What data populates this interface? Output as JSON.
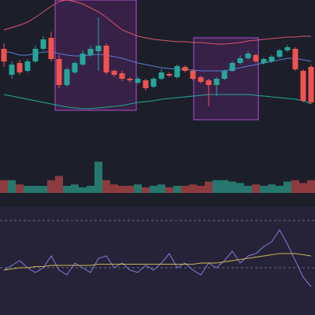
{
  "chart_data": [
    {
      "type": "candlestick",
      "ylim": [
        0,
        150
      ],
      "up_color": "#26a69a",
      "down_color": "#ef5350",
      "open": [
        88,
        55,
        70,
        60,
        72,
        88,
        102,
        75,
        42,
        58,
        68,
        80,
        85,
        92,
        60,
        57,
        50,
        45,
        48,
        40,
        50,
        56,
        52,
        65,
        60,
        52,
        48,
        42,
        50,
        60,
        70,
        76,
        80,
        70,
        72,
        78,
        86,
        88,
        60,
        65
      ],
      "close": [
        72,
        68,
        58,
        72,
        88,
        100,
        75,
        42,
        62,
        70,
        82,
        88,
        92,
        58,
        55,
        50,
        48,
        50,
        38,
        50,
        58,
        54,
        66,
        60,
        50,
        46,
        42,
        50,
        60,
        70,
        76,
        82,
        72,
        75,
        78,
        86,
        90,
        62,
        22,
        20
      ],
      "high": [
        95,
        72,
        74,
        75,
        92,
        104,
        110,
        80,
        64,
        72,
        86,
        92,
        128,
        95,
        62,
        60,
        52,
        52,
        50,
        52,
        62,
        58,
        68,
        67,
        62,
        54,
        50,
        52,
        62,
        72,
        80,
        85,
        82,
        77,
        80,
        88,
        93,
        90,
        62,
        68
      ],
      "low": [
        65,
        50,
        55,
        58,
        70,
        86,
        72,
        38,
        40,
        56,
        66,
        78,
        60,
        55,
        52,
        47,
        45,
        43,
        35,
        38,
        48,
        52,
        50,
        58,
        48,
        44,
        15,
        28,
        48,
        58,
        68,
        74,
        70,
        68,
        70,
        76,
        84,
        60,
        20,
        18
      ],
      "series": [
        {
          "name": "upper",
          "color": "#d9536a",
          "values": [
            112,
            115,
            118,
            122,
            128,
            135,
            142,
            148,
            150,
            148,
            145,
            140,
            135,
            128,
            120,
            112,
            108,
            104,
            102,
            100,
            99,
            98,
            97,
            97,
            96,
            96,
            95,
            94,
            94,
            95,
            96,
            98,
            99,
            100,
            101,
            102,
            103,
            103,
            104,
            104
          ]
        },
        {
          "name": "middle",
          "color": "#5b7bd5",
          "values": [
            85,
            83,
            80,
            80,
            82,
            84,
            84,
            82,
            80,
            79,
            79,
            80,
            81,
            80,
            78,
            76,
            73,
            70,
            68,
            66,
            64,
            63,
            62,
            62,
            61,
            60,
            60,
            60,
            60,
            62,
            64,
            66,
            68,
            70,
            72,
            74,
            76,
            76,
            74,
            72
          ]
        },
        {
          "name": "lower",
          "color": "#26a69a",
          "values": [
            30,
            28,
            26,
            24,
            22,
            20,
            18,
            16,
            14,
            13,
            12,
            12,
            13,
            14,
            15,
            16,
            18,
            20,
            21,
            22,
            24,
            25,
            26,
            27,
            28,
            29,
            30,
            30,
            30,
            30,
            30,
            30,
            29,
            28,
            27,
            26,
            25,
            24,
            22,
            18
          ]
        }
      ]
    },
    {
      "type": "bar",
      "ylim": [
        0,
        50
      ],
      "up_color": "#26786e",
      "down_color": "#8e3b3f",
      "values": [
        18,
        18,
        12,
        10,
        10,
        10,
        18,
        24,
        10,
        12,
        8,
        10,
        44,
        18,
        12,
        10,
        10,
        12,
        8,
        10,
        12,
        8,
        10,
        10,
        12,
        10,
        16,
        18,
        18,
        16,
        14,
        10,
        12,
        10,
        12,
        10,
        16,
        18,
        14,
        18
      ]
    },
    {
      "type": "line",
      "ylim": [
        -10,
        80
      ],
      "levels": [
        70,
        30
      ],
      "series": [
        {
          "name": "rsi",
          "color": "#7e7ed8",
          "values": [
            28,
            32,
            36,
            30,
            26,
            30,
            40,
            28,
            24,
            34,
            30,
            26,
            38,
            40,
            30,
            34,
            28,
            26,
            32,
            28,
            34,
            42,
            30,
            34,
            28,
            24,
            34,
            30,
            36,
            44,
            34,
            40,
            42,
            48,
            52,
            62,
            50,
            36,
            22,
            14
          ]
        },
        {
          "name": "signal",
          "color": "#c9b456",
          "values": [
            28,
            29,
            30,
            30,
            31,
            31,
            32,
            32,
            32,
            32,
            32,
            32,
            33,
            33,
            33,
            33,
            33,
            33,
            33,
            33,
            33,
            33,
            33,
            33,
            33,
            34,
            34,
            34,
            35,
            36,
            37,
            38,
            39,
            40,
            41,
            42,
            42,
            42,
            41,
            40
          ]
        }
      ]
    }
  ]
}
